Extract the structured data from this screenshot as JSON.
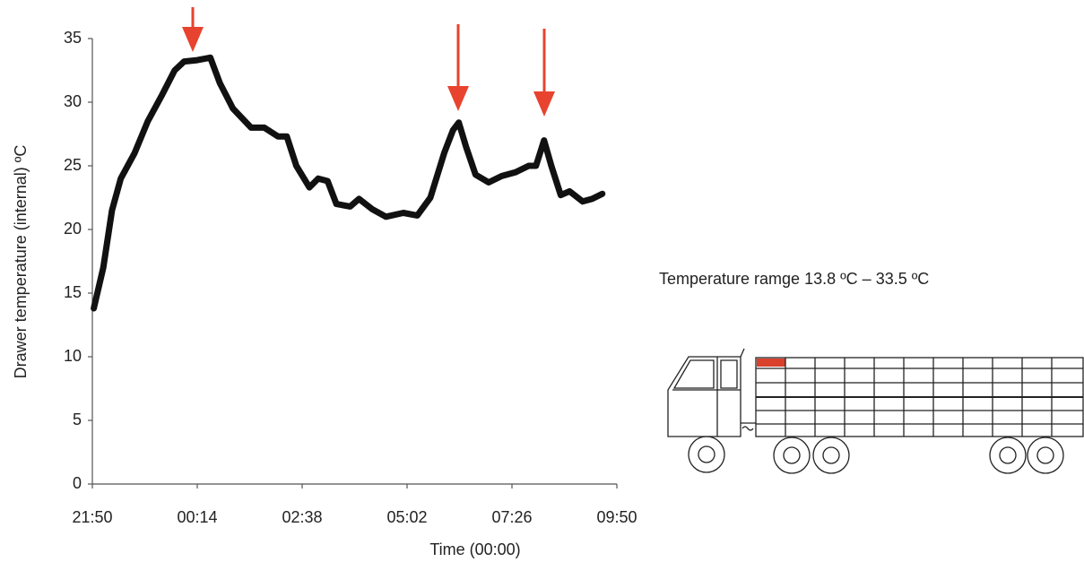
{
  "chart_data": {
    "type": "line",
    "x": [
      "21:52",
      "22:05",
      "22:17",
      "22:29",
      "22:48",
      "23:06",
      "23:25",
      "23:43",
      "23:56",
      "00:14",
      "00:32",
      "00:45",
      "01:03",
      "01:28",
      "01:46",
      "02:05",
      "02:17",
      "02:30",
      "02:48",
      "03:00",
      "03:13",
      "03:25",
      "03:44",
      "03:56",
      "04:14",
      "04:33",
      "04:57",
      "05:16",
      "05:34",
      "05:53",
      "06:05",
      "06:13",
      "06:23",
      "06:36",
      "06:54",
      "07:12",
      "07:31",
      "07:49",
      "07:59",
      "08:10",
      "08:20",
      "08:33",
      "08:45",
      "09:03",
      "09:16",
      "09:30"
    ],
    "series": [
      {
        "name": "Drawer temperature",
        "color": "#111111",
        "values": [
          13.8,
          17,
          21.5,
          24,
          26,
          28.5,
          30.5,
          32.5,
          33.2,
          33.3,
          33.5,
          31.5,
          29.5,
          28,
          28,
          27.3,
          27.3,
          25,
          23.3,
          24,
          23.8,
          22,
          21.8,
          22.4,
          21.6,
          21,
          21.3,
          21.1,
          22.5,
          26,
          27.8,
          28.4,
          26.5,
          24.3,
          23.7,
          24.2,
          24.5,
          25,
          25,
          27,
          25,
          22.7,
          23,
          22.2,
          22.4,
          22.8
        ]
      }
    ],
    "xlim": [
      "21:50",
      "09:50"
    ],
    "xticks": [
      "21:50",
      "00:14",
      "02:38",
      "05:02",
      "07:26",
      "09:50"
    ],
    "ylim": [
      0,
      35
    ],
    "yticks": [
      0,
      5,
      10,
      15,
      20,
      25,
      30,
      35
    ],
    "xlabel": "Time (00:00)",
    "ylabel": "Drawer temperature (internal) ºC",
    "annotation": "Temperature ramge 13.8 ºC – 33.5 ºC",
    "arrow_color": "#e8432e"
  }
}
